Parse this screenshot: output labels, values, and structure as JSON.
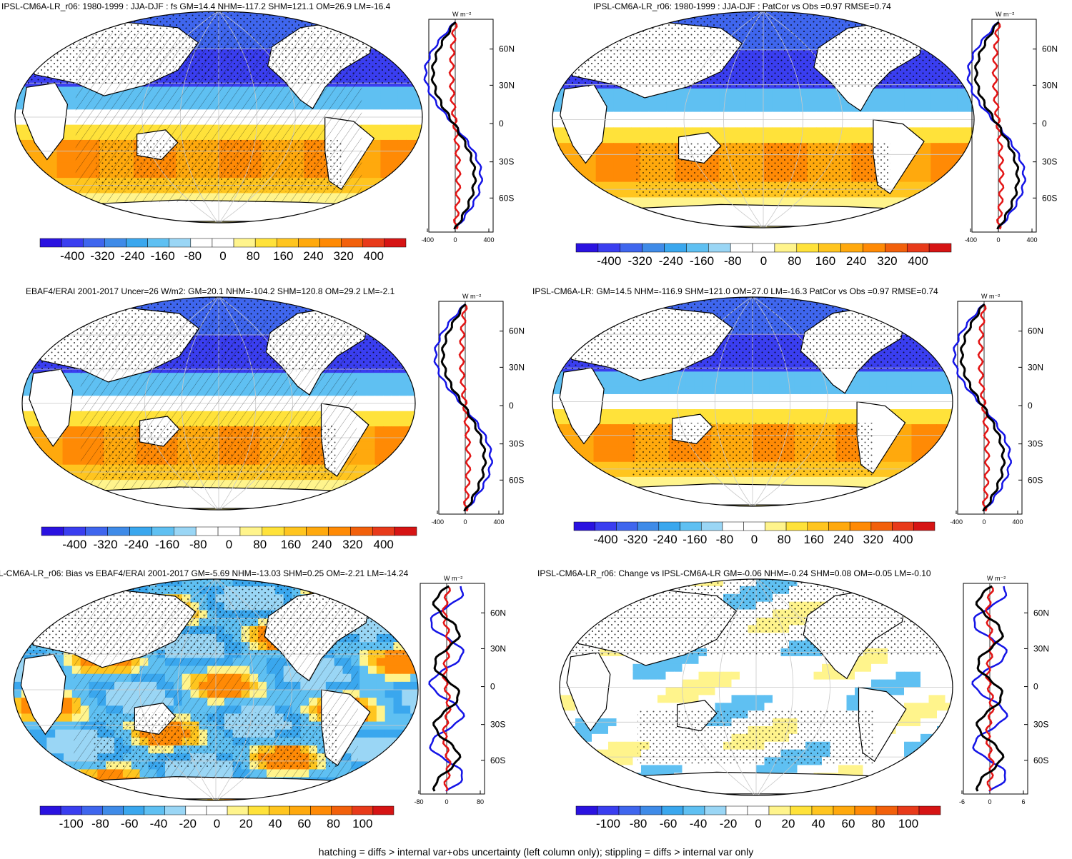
{
  "panels": [
    {
      "id": "p1",
      "title": "IPSL-CM6A-LR_r06: 1980-1999 : JJA-DJF : fs GM=14.4 NHM=-117.2 SHM=121.1 OM=26.9 LM=-16.4",
      "scale": "large",
      "hatch": true,
      "stipple": true,
      "profile": {
        "unit": "W m⁻²",
        "lat_ticks": [
          "60N",
          "30N",
          "0",
          "30S",
          "60S"
        ],
        "x_ticks": [
          "-400",
          "0",
          "400"
        ]
      },
      "colorbar": {
        "ticks": [
          "-400",
          "-320",
          "-240",
          "-160",
          "-80",
          "0",
          "80",
          "160",
          "240",
          "320",
          "400"
        ]
      }
    },
    {
      "id": "p2",
      "title": "IPSL-CM6A-LR_r06: 1980-1999 : JJA-DJF : PatCor vs Obs =0.97 RMSE=0.74",
      "scale": "large",
      "hatch": false,
      "stipple": true,
      "profile": {
        "unit": "W m⁻²",
        "lat_ticks": [
          "60N",
          "30N",
          "0",
          "30S",
          "60S"
        ],
        "x_ticks": [
          "-400",
          "0",
          "400"
        ]
      },
      "colorbar": {
        "ticks": [
          "-400",
          "-320",
          "-240",
          "-160",
          "-80",
          "0",
          "80",
          "160",
          "240",
          "320",
          "400"
        ]
      }
    },
    {
      "id": "p3",
      "title": "EBAF4/ERAI 2001-2017 Uncer=26 W/m2: GM=20.1 NHM=-104.2 SHM=120.8 OM=29.2 LM=-2.1",
      "scale": "large",
      "hatch": true,
      "stipple": true,
      "profile": {
        "unit": "W m⁻²",
        "lat_ticks": [
          "60N",
          "30N",
          "0",
          "30S",
          "60S"
        ],
        "x_ticks": [
          "-400",
          "0",
          "400"
        ]
      },
      "colorbar": {
        "ticks": [
          "-400",
          "-320",
          "-240",
          "-160",
          "-80",
          "0",
          "80",
          "160",
          "240",
          "320",
          "400"
        ]
      }
    },
    {
      "id": "p4",
      "title": "IPSL-CM6A-LR: GM=14.5 NHM=-116.9 SHM=121.0 OM=27.0 LM=-16.3 PatCor vs Obs =0.97 RMSE=0.74",
      "scale": "large",
      "hatch": false,
      "stipple": true,
      "profile": {
        "unit": "W m⁻²",
        "lat_ticks": [
          "60N",
          "30N",
          "0",
          "30S",
          "60S"
        ],
        "x_ticks": [
          "-400",
          "0",
          "400"
        ]
      },
      "colorbar": {
        "ticks": [
          "-400",
          "-320",
          "-240",
          "-160",
          "-80",
          "0",
          "80",
          "160",
          "240",
          "320",
          "400"
        ]
      }
    },
    {
      "id": "p5",
      "title": "L-CM6A-LR_r06: Bias vs EBAF4/ERAI 2001-2017 GM=-5.69 NHM=-13.03 SHM=0.25 OM=-2.21 LM=-14.24",
      "scale": "bias",
      "hatch": true,
      "stipple": true,
      "profile": {
        "unit": "W m⁻²",
        "lat_ticks": [
          "60N",
          "30N",
          "0",
          "30S",
          "60S"
        ],
        "x_ticks": [
          "-80",
          "0",
          "80"
        ]
      },
      "colorbar": {
        "ticks": [
          "-100",
          "-80",
          "-60",
          "-40",
          "-20",
          "0",
          "20",
          "40",
          "60",
          "80",
          "100"
        ]
      }
    },
    {
      "id": "p6",
      "title": "IPSL-CM6A-LR_r06: Change vs IPSL-CM6A-LR GM=-0.06 NHM=-0.24 SHM=0.08 OM=-0.05 LM=-0.10",
      "scale": "change",
      "hatch": false,
      "stipple": true,
      "profile": {
        "unit": "W m⁻²",
        "lat_ticks": [
          "60N",
          "30N",
          "0",
          "30S",
          "60S"
        ],
        "x_ticks": [
          "-6",
          "0",
          "6"
        ]
      },
      "colorbar": {
        "ticks": [
          "-100",
          "-80",
          "-60",
          "-40",
          "-20",
          "0",
          "20",
          "40",
          "60",
          "80",
          "100"
        ]
      }
    }
  ],
  "colors": {
    "palette": [
      "#2a12e0",
      "#3a3ef0",
      "#3f66ee",
      "#3f8be8",
      "#3aa7ee",
      "#5fc0f2",
      "#9ad6f5",
      "#ffffff",
      "#ffffff",
      "#fff48c",
      "#ffe23a",
      "#ffc51f",
      "#ffa90d",
      "#ff8a05",
      "#f2600b",
      "#e83a1a",
      "#d61414"
    ],
    "land": "#ffffff",
    "obs_line": "#1414e6",
    "model_line": "#e31414",
    "mean_line": "#000000"
  },
  "footer": "hatching = diffs > internal var+obs uncertainty (left column only); stippling = diffs > internal var only"
}
